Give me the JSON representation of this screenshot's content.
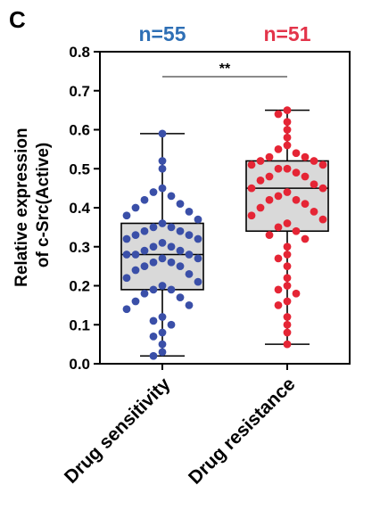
{
  "panel_label": "C",
  "group_counts": [
    {
      "text": "n=55",
      "color": "#2e6fb5"
    },
    {
      "text": "n=51",
      "color": "#e3344a"
    }
  ],
  "significance": "**",
  "chart_data": {
    "type": "box",
    "title": "",
    "xlabel": "",
    "ylabel": "Relative expression of c-Src(Active)",
    "ylim": [
      0,
      0.8
    ],
    "yticks": [
      "0.0",
      "0.1",
      "0.2",
      "0.3",
      "0.4",
      "0.5",
      "0.6",
      "0.7",
      "0.8"
    ],
    "categories": [
      "Drug sensitivity",
      "Drug resistance"
    ],
    "grid": false,
    "colors": {
      "box_fill": "#d9d9d9",
      "sensitivity": "#3a4fa8",
      "resistance": "#e52535",
      "axis": "#000000"
    },
    "series": [
      {
        "category": "Drug sensitivity",
        "n": 55,
        "min": 0.02,
        "q1": 0.19,
        "median": 0.28,
        "q3": 0.36,
        "max": 0.59,
        "points": [
          0.59,
          0.52,
          0.5,
          0.45,
          0.44,
          0.43,
          0.42,
          0.41,
          0.4,
          0.39,
          0.38,
          0.37,
          0.36,
          0.35,
          0.35,
          0.34,
          0.34,
          0.33,
          0.33,
          0.32,
          0.32,
          0.31,
          0.3,
          0.3,
          0.29,
          0.29,
          0.28,
          0.28,
          0.28,
          0.27,
          0.27,
          0.26,
          0.26,
          0.25,
          0.25,
          0.24,
          0.23,
          0.22,
          0.21,
          0.2,
          0.19,
          0.19,
          0.18,
          0.17,
          0.16,
          0.15,
          0.14,
          0.12,
          0.11,
          0.1,
          0.08,
          0.07,
          0.05,
          0.03,
          0.02
        ]
      },
      {
        "category": "Drug resistance",
        "n": 51,
        "min": 0.05,
        "q1": 0.34,
        "median": 0.45,
        "q3": 0.52,
        "max": 0.65,
        "points": [
          0.65,
          0.64,
          0.62,
          0.6,
          0.58,
          0.56,
          0.55,
          0.54,
          0.53,
          0.53,
          0.52,
          0.52,
          0.51,
          0.51,
          0.5,
          0.5,
          0.49,
          0.48,
          0.48,
          0.47,
          0.46,
          0.45,
          0.45,
          0.44,
          0.43,
          0.42,
          0.42,
          0.41,
          0.4,
          0.39,
          0.38,
          0.37,
          0.36,
          0.35,
          0.34,
          0.33,
          0.32,
          0.3,
          0.28,
          0.27,
          0.25,
          0.22,
          0.2,
          0.19,
          0.18,
          0.16,
          0.15,
          0.12,
          0.1,
          0.08,
          0.05
        ]
      }
    ]
  }
}
